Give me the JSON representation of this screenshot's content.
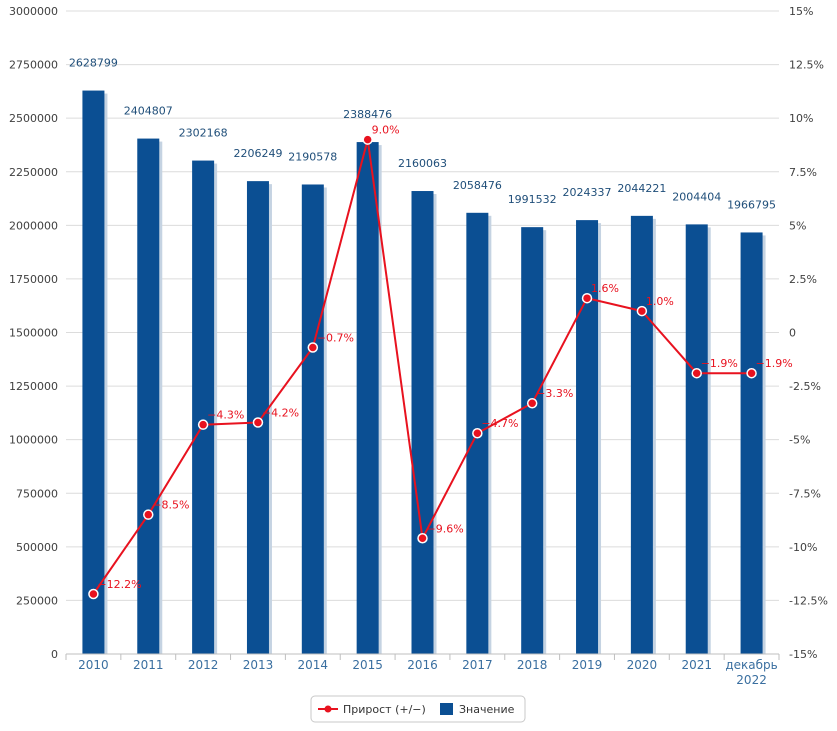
{
  "chart_data": {
    "type": "bar+line",
    "categories": [
      "2010",
      "2011",
      "2012",
      "2013",
      "2014",
      "2015",
      "2016",
      "2017",
      "2018",
      "2019",
      "2020",
      "2021",
      "декабрь 2022"
    ],
    "series": [
      {
        "name": "Значение",
        "type": "bar",
        "axis": "left",
        "color": "#0b4f93",
        "values": [
          2628799,
          2404807,
          2302168,
          2206249,
          2190578,
          2388476,
          2160063,
          2058476,
          1991532,
          2024337,
          2044221,
          2004404,
          1966795
        ],
        "labels": [
          "2628799",
          "2404807",
          "2302168",
          "2206249",
          "2190578",
          "2388476",
          "2160063",
          "2058476",
          "1991532",
          "2024337",
          "2044221",
          "2004404",
          "1966795"
        ]
      },
      {
        "name": "Прирост (+/−)",
        "type": "line",
        "axis": "right",
        "color": "#e8121f",
        "values": [
          -12.2,
          -8.5,
          -4.3,
          -4.2,
          -0.7,
          9.0,
          -9.6,
          -4.7,
          -3.3,
          1.6,
          1.0,
          -1.9,
          -1.9
        ],
        "labels": [
          "−12.2%",
          "−8.5%",
          "−4.3%",
          "−4.2%",
          "−0.7%",
          "9.0%",
          "−9.6%",
          "−4.7%",
          "−3.3%",
          "1.6%",
          "1.0%",
          "−1.9%",
          "−1.9%"
        ]
      }
    ],
    "y_left": {
      "range": [
        0,
        3000000
      ],
      "ticks": [
        0,
        250000,
        500000,
        750000,
        1000000,
        1250000,
        1500000,
        1750000,
        2000000,
        2250000,
        2500000,
        2750000,
        3000000
      ],
      "tick_labels": [
        "0",
        "250000",
        "500000",
        "750000",
        "1000000",
        "1250000",
        "1500000",
        "1750000",
        "2000000",
        "2250000",
        "2500000",
        "2750000",
        "3000000"
      ]
    },
    "y_right": {
      "range": [
        -15,
        15
      ],
      "ticks": [
        -15,
        -12.5,
        -10,
        -7.5,
        -5,
        -2.5,
        0,
        2.5,
        5,
        7.5,
        10,
        12.5,
        15
      ],
      "tick_labels": [
        "-15%",
        "-12.5%",
        "-10%",
        "-7.5%",
        "-5%",
        "-2.5%",
        "0",
        "2.5%",
        "5%",
        "7.5%",
        "10%",
        "12.5%",
        "15%"
      ]
    },
    "grid": true,
    "legend_position": "bottom-center"
  }
}
